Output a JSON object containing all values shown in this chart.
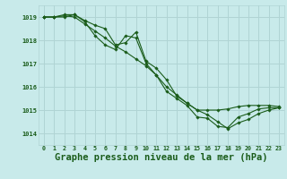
{
  "background_color": "#c8eaea",
  "grid_color": "#b0d4d4",
  "line_color": "#1a5c1a",
  "marker_color": "#1a5c1a",
  "xlabel": "Graphe pression niveau de la mer (hPa)",
  "xlabel_fontsize": 7.5,
  "xlim": [
    -0.5,
    23.5
  ],
  "ylim": [
    1013.5,
    1019.5
  ],
  "yticks": [
    1014,
    1015,
    1016,
    1017,
    1018,
    1019
  ],
  "xticks": [
    0,
    1,
    2,
    3,
    4,
    5,
    6,
    7,
    8,
    9,
    10,
    11,
    12,
    13,
    14,
    15,
    16,
    17,
    18,
    19,
    20,
    21,
    22,
    23
  ],
  "series": [
    [
      1019.0,
      1019.0,
      1019.1,
      1019.1,
      1018.8,
      1018.2,
      1017.8,
      1017.6,
      1018.2,
      1018.1,
      1017.0,
      1016.5,
      1015.8,
      1015.5,
      1015.2,
      1014.7,
      1014.65,
      1014.3,
      1014.25,
      1014.7,
      1014.85,
      1015.05,
      1015.1,
      1015.1
    ],
    [
      1019.0,
      1019.0,
      1019.05,
      1019.0,
      1018.7,
      1018.4,
      1018.1,
      1017.75,
      1017.5,
      1017.2,
      1016.9,
      1016.5,
      1016.0,
      1015.65,
      1015.3,
      1015.0,
      1014.8,
      1014.5,
      1014.2,
      1014.45,
      1014.6,
      1014.85,
      1015.0,
      1015.1
    ],
    [
      1019.0,
      1019.0,
      1019.0,
      1019.1,
      1018.85,
      1018.65,
      1018.5,
      1017.8,
      1017.9,
      1018.35,
      1017.1,
      1016.8,
      1016.3,
      1015.6,
      1015.3,
      1015.0,
      1015.0,
      1015.0,
      1015.05,
      1015.15,
      1015.2,
      1015.2,
      1015.2,
      1015.15
    ]
  ]
}
